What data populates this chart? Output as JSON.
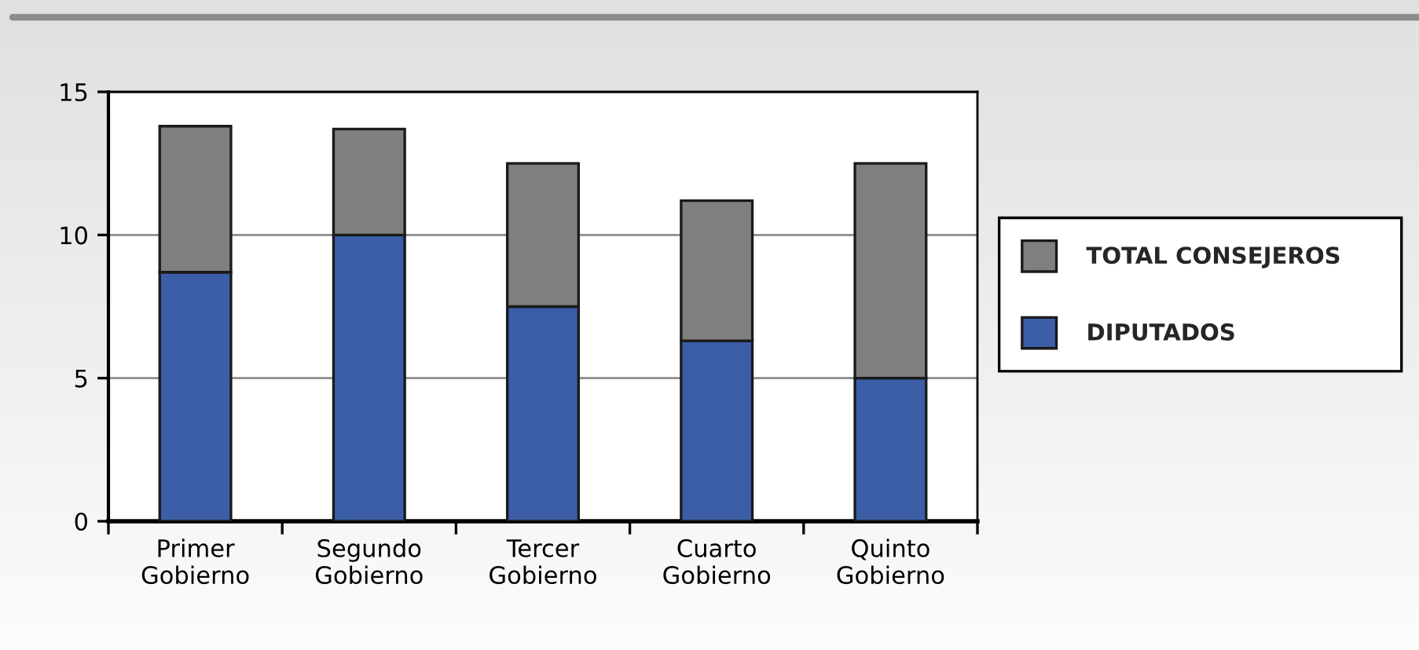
{
  "chart_data": {
    "type": "bar",
    "stacked": true,
    "categories": [
      "Primer Gobierno",
      "Segundo Gobierno",
      "Tercer Gobierno",
      "Cuarto Gobierno",
      "Quinto Gobierno"
    ],
    "series": [
      {
        "name": "DIPUTADOS",
        "color": "#3b5ea6",
        "values": [
          8.7,
          10,
          7.5,
          6.3,
          5
        ]
      },
      {
        "name": "TOTAL CONSEJEROS",
        "color": "#7f7f7f",
        "values": [
          5.1,
          3.7,
          5.0,
          4.9,
          7.5
        ]
      }
    ],
    "ylim": [
      0,
      15
    ],
    "yticks": [
      0,
      5,
      10,
      15
    ],
    "grid": "y",
    "legend": "right"
  }
}
